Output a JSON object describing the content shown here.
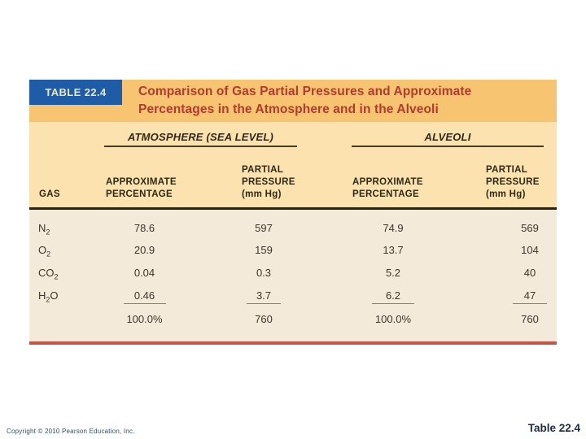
{
  "table": {
    "badge_label": "TABLE 22.4",
    "title_line1": "Comparison of Gas Partial Pressures and Approximate",
    "title_line2": "Percentages in the Atmosphere and in the Alveoli",
    "groups": {
      "atmosphere_label": "ATMOSPHERE (SEA LEVEL)",
      "alveoli_label": "ALVEOLI"
    },
    "columns": {
      "gas": "GAS",
      "approximate": "APPROXIMATE",
      "percentage": "PERCENTAGE",
      "partial": "PARTIAL",
      "pressure": "PRESSURE",
      "mmhg": "(mm Hg)"
    },
    "rows": [
      {
        "gas_pre": "N",
        "gas_sub": "2",
        "gas_post": "",
        "atm_pct": "78.6",
        "atm_mmhg": "597",
        "alv_pct": "74.9",
        "alv_mmhg": "569"
      },
      {
        "gas_pre": "O",
        "gas_sub": "2",
        "gas_post": "",
        "atm_pct": "20.9",
        "atm_mmhg": "159",
        "alv_pct": "13.7",
        "alv_mmhg": "104"
      },
      {
        "gas_pre": "CO",
        "gas_sub": "2",
        "gas_post": "",
        "atm_pct": "0.04",
        "atm_mmhg": "0.3",
        "alv_pct": "5.2",
        "alv_mmhg": "40"
      },
      {
        "gas_pre": "H",
        "gas_sub": "2",
        "gas_post": "O",
        "atm_pct": "0.46",
        "atm_mmhg": "3.7",
        "alv_pct": "6.2",
        "alv_mmhg": "47"
      }
    ],
    "totals": {
      "atm_pct": "100.0%",
      "atm_mmhg": "760",
      "alv_pct": "100.0%",
      "alv_mmhg": "760"
    }
  },
  "footer": {
    "copyright": "Copyright © 2010 Pearson Education, Inc.",
    "figure_label": "Table 22.4"
  },
  "colors": {
    "title_band": "#f7c471",
    "badge_bg": "#1e5ca8",
    "badge_text": "#efe6c2",
    "title_text": "#b23a2e",
    "subheader_band": "#fbe2af",
    "header_text": "#2f2816",
    "dark_rule": "#2a2113",
    "data_bg": "#f3ead9",
    "data_text": "#3d362b",
    "sum_rule": "#8a7e6c",
    "bottom_rule": "#c65546",
    "copyright_text": "#30505f",
    "figure_label_text": "#1f2a44"
  }
}
